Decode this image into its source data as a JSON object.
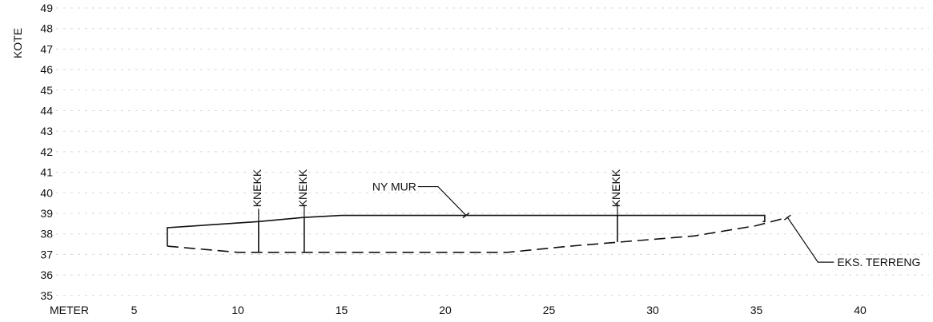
{
  "chart_data": {
    "type": "line",
    "title": "",
    "ylabel": "KOTE",
    "xlabel": "METER",
    "xlim": [
      0,
      42.6
    ],
    "ylim": [
      35,
      49
    ],
    "x_ticks": [
      5,
      10,
      15,
      20,
      25,
      30,
      35,
      40
    ],
    "y_ticks": [
      35,
      36,
      37,
      38,
      39,
      40,
      41,
      42,
      43,
      44,
      45,
      46,
      47,
      48,
      49
    ],
    "grid": true,
    "series": [
      {
        "name": "NY MUR",
        "style": "solid",
        "points": [
          [
            6.6,
            38.3
          ],
          [
            6.6,
            37.4
          ],
          [
            6.6,
            38.3
          ],
          [
            11.0,
            38.6
          ],
          [
            13.2,
            38.8
          ],
          [
            15.0,
            38.9
          ],
          [
            35.4,
            38.9
          ],
          [
            35.4,
            38.6
          ],
          [
            35.3,
            38.6
          ]
        ]
      },
      {
        "name": "EKS. TERRENG",
        "style": "dashed",
        "points": [
          [
            6.6,
            37.4
          ],
          [
            10.0,
            37.1
          ],
          [
            23.0,
            37.1
          ],
          [
            26.0,
            37.4
          ],
          [
            32.0,
            37.9
          ],
          [
            35.0,
            38.4
          ],
          [
            36.5,
            38.8
          ]
        ]
      }
    ],
    "verticals": [
      {
        "x": 11.0,
        "y_bottom": 37.1,
        "y_top": 38.6
      },
      {
        "x": 13.2,
        "y_bottom": 37.1,
        "y_top": 38.8
      },
      {
        "x": 28.3,
        "y_bottom": 37.6,
        "y_top": 38.9
      }
    ],
    "annotations": [
      {
        "text": "KNEKK",
        "x": 11.0,
        "rotated": true
      },
      {
        "text": "KNEKK",
        "x": 13.2,
        "rotated": true
      },
      {
        "text": "KNEKK",
        "x": 28.3,
        "rotated": true
      },
      {
        "text": "NY MUR",
        "x": 21.0,
        "y": 38.9
      },
      {
        "text": "EKS. TERRENG",
        "x": 36.5,
        "y": 38.8
      }
    ]
  }
}
